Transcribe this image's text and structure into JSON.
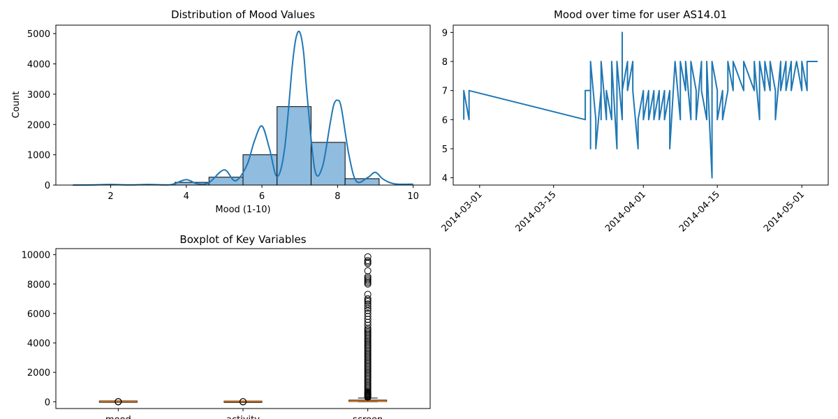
{
  "chart_data": [
    {
      "type": "bar",
      "title": "Distribution of Mood Values",
      "xlabel": "Mood (1-10)",
      "ylabel": "Count",
      "xlim": [
        0.55,
        10.45
      ],
      "ylim": [
        0,
        5280
      ],
      "xticks": [
        2,
        4,
        6,
        8,
        10
      ],
      "yticks": [
        0,
        1000,
        2000,
        3000,
        4000,
        5000
      ],
      "bins": [
        {
          "start": 1.0,
          "end": 1.9,
          "count": 0
        },
        {
          "start": 1.9,
          "end": 2.8,
          "count": 0
        },
        {
          "start": 2.8,
          "end": 3.7,
          "count": 0
        },
        {
          "start": 3.7,
          "end": 4.6,
          "count": 90
        },
        {
          "start": 4.6,
          "end": 5.5,
          "count": 260
        },
        {
          "start": 5.5,
          "end": 6.4,
          "count": 1000
        },
        {
          "start": 6.4,
          "end": 7.3,
          "count": 2590
        },
        {
          "start": 7.3,
          "end": 8.2,
          "count": 1410
        },
        {
          "start": 8.2,
          "end": 9.1,
          "count": 210
        },
        {
          "start": 9.1,
          "end": 10.0,
          "count": 0
        }
      ],
      "kde": {
        "x": [
          1.0,
          1.5,
          2.0,
          2.5,
          3.0,
          3.5,
          3.7,
          4.0,
          4.3,
          4.6,
          5.0,
          5.3,
          5.6,
          5.8,
          6.0,
          6.2,
          6.4,
          6.6,
          6.8,
          6.9,
          7.0,
          7.1,
          7.2,
          7.4,
          7.6,
          7.8,
          7.9,
          8.0,
          8.1,
          8.3,
          8.5,
          8.8,
          9.0,
          9.2,
          9.5,
          10.0
        ],
        "y": [
          0,
          5,
          20,
          5,
          20,
          5,
          50,
          180,
          40,
          80,
          500,
          140,
          650,
          1450,
          1950,
          1200,
          280,
          1200,
          3900,
          4850,
          5050,
          4400,
          2900,
          500,
          600,
          2000,
          2650,
          2800,
          2550,
          1000,
          120,
          250,
          420,
          200,
          40,
          30
        ]
      },
      "bar_color": "#8fbcdf",
      "line_color": "#1f77b4"
    },
    {
      "type": "line",
      "title": "Mood over time for user AS14.01",
      "xlim": [
        "2014-02-24",
        "2014-05-06"
      ],
      "ylim": [
        3.75,
        9.25
      ],
      "xticks": [
        "2014-03-01",
        "2014-03-15",
        "2014-04-01",
        "2014-04-15",
        "2014-05-01"
      ],
      "yticks": [
        4,
        5,
        6,
        7,
        8,
        9
      ],
      "series": [
        {
          "x": [
            "2014-02-26",
            "2014-02-26",
            "2014-02-27",
            "2014-02-27",
            "2014-03-21",
            "2014-03-21",
            "2014-03-22",
            "2014-03-22",
            "2014-03-22",
            "2014-03-23",
            "2014-03-23",
            "2014-03-24",
            "2014-03-24",
            "2014-03-24",
            "2014-03-25",
            "2014-03-25",
            "2014-03-26",
            "2014-03-26",
            "2014-03-27",
            "2014-03-27",
            "2014-03-28",
            "2014-03-28",
            "2014-03-28",
            "2014-03-29",
            "2014-03-29",
            "2014-03-30",
            "2014-03-30",
            "2014-03-31",
            "2014-03-31",
            "2014-04-01",
            "2014-04-01",
            "2014-04-02",
            "2014-04-02",
            "2014-04-03",
            "2014-04-03",
            "2014-04-04",
            "2014-04-04",
            "2014-04-05",
            "2014-04-05",
            "2014-04-06",
            "2014-04-06",
            "2014-04-07",
            "2014-04-08",
            "2014-04-08",
            "2014-04-09",
            "2014-04-09",
            "2014-04-10",
            "2014-04-10",
            "2014-04-11",
            "2014-04-11",
            "2014-04-12",
            "2014-04-12",
            "2014-04-13",
            "2014-04-13",
            "2014-04-14",
            "2014-04-14",
            "2014-04-15",
            "2014-04-15",
            "2014-04-16",
            "2014-04-16",
            "2014-04-17",
            "2014-04-17",
            "2014-04-18",
            "2014-04-18",
            "2014-04-20",
            "2014-04-20",
            "2014-04-22",
            "2014-04-22",
            "2014-04-23",
            "2014-04-23",
            "2014-04-24",
            "2014-04-24",
            "2014-04-25",
            "2014-04-25",
            "2014-04-26",
            "2014-04-26",
            "2014-04-27",
            "2014-04-27",
            "2014-04-28",
            "2014-04-28",
            "2014-04-29",
            "2014-04-29",
            "2014-04-30",
            "2014-04-30",
            "2014-05-01",
            "2014-05-01",
            "2014-05-02",
            "2014-05-02",
            "2014-05-03",
            "2014-05-04"
          ],
          "y": [
            6,
            7,
            6,
            7,
            6,
            7,
            7,
            5,
            8,
            6,
            5,
            7,
            6,
            8,
            6,
            7,
            6,
            8,
            5,
            8,
            6,
            9,
            7,
            8,
            7,
            8,
            7,
            5,
            6,
            7,
            6,
            7,
            6,
            7,
            6,
            7,
            6,
            7,
            6,
            7,
            5,
            8,
            6,
            8,
            7,
            8,
            6,
            8,
            7,
            6,
            8,
            7,
            6,
            8,
            4,
            8,
            7,
            6,
            7,
            6,
            7,
            8,
            7,
            8,
            7,
            8,
            7,
            8,
            6,
            8,
            7,
            8,
            7,
            8,
            7,
            6,
            8,
            7,
            8,
            7,
            8,
            7,
            8,
            8,
            7,
            8,
            7,
            8,
            8,
            8
          ]
        }
      ],
      "line_color": "#1f77b4"
    },
    {
      "type": "box",
      "title": "Boxplot of Key Variables",
      "categories": [
        "mood",
        "activity",
        "screen"
      ],
      "ylim": [
        -460,
        10410
      ],
      "yticks": [
        0,
        2000,
        4000,
        6000,
        8000,
        10000
      ],
      "boxes": [
        {
          "q1": 6,
          "median": 7,
          "q3": 8,
          "whisker_low": 4,
          "whisker_high": 9,
          "outliers": [
            1,
            2,
            3,
            10
          ]
        },
        {
          "q1": 0.05,
          "median": 0.1,
          "q3": 0.2,
          "whisker_low": 0,
          "whisker_high": 0.4,
          "outliers": [
            0.6,
            0.8,
            1
          ]
        },
        {
          "q1": 15,
          "median": 45,
          "q3": 110,
          "whisker_low": 0,
          "whisker_high": 250,
          "outliers": [
            300,
            350,
            400,
            450,
            500,
            550,
            600,
            650,
            700,
            800,
            900,
            1000,
            1100,
            1200,
            1300,
            1400,
            1500,
            1600,
            1700,
            1800,
            1900,
            2000,
            2100,
            2200,
            2300,
            2400,
            2500,
            2600,
            2700,
            2800,
            2900,
            3000,
            3100,
            3200,
            3300,
            3400,
            3500,
            3600,
            3700,
            3800,
            3900,
            4000,
            4100,
            4200,
            4300,
            4400,
            4500,
            4600,
            4700,
            4800,
            4900,
            5000,
            5200,
            5400,
            5600,
            5800,
            6000,
            6200,
            6350,
            6500,
            6650,
            6800,
            6900,
            7000,
            7300,
            8000,
            8100,
            8200,
            8300,
            8400,
            8500,
            8900,
            9400,
            9500,
            9600,
            9850
          ]
        }
      ],
      "box_color": "#000000",
      "median_color": "#ff7f0e"
    }
  ]
}
